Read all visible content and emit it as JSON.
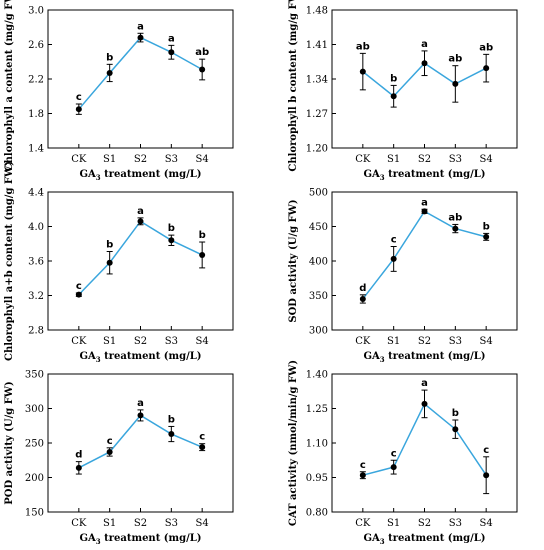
{
  "chart_data": [
    {
      "type": "line",
      "categories": [
        "CK",
        "S1",
        "S2",
        "S3",
        "S4"
      ],
      "values": [
        1.85,
        2.27,
        2.68,
        2.51,
        2.31
      ],
      "errors": [
        0.06,
        0.1,
        0.05,
        0.08,
        0.12
      ],
      "significance": [
        "c",
        "b",
        "a",
        "a",
        "ab"
      ],
      "ylabel": "Chlorophyll a content (mg/g FW)",
      "xlabel": "GA3 treatment (mg/L)",
      "ylim": [
        1.4,
        3.0
      ],
      "yticks": [
        "1.4",
        "1.8",
        "2.2",
        "2.6",
        "3.0"
      ],
      "line_color": "#3aa6dd"
    },
    {
      "type": "line",
      "categories": [
        "CK",
        "S1",
        "S2",
        "S3",
        "S4"
      ],
      "values": [
        1.355,
        1.305,
        1.372,
        1.33,
        1.362
      ],
      "errors": [
        0.037,
        0.022,
        0.025,
        0.037,
        0.028
      ],
      "significance": [
        "ab",
        "b",
        "a",
        "ab",
        "ab"
      ],
      "ylabel": "Chlorophyll b content (mg/g FW)",
      "xlabel": "GA3 treatment (mg/L)",
      "ylim": [
        1.2,
        1.48
      ],
      "yticks": [
        "1.20",
        "1.27",
        "1.34",
        "1.41",
        "1.48"
      ],
      "line_color": "#3aa6dd"
    },
    {
      "type": "line",
      "categories": [
        "CK",
        "S1",
        "S2",
        "S3",
        "S4"
      ],
      "values": [
        3.21,
        3.58,
        4.06,
        3.84,
        3.67
      ],
      "errors": [
        0.02,
        0.13,
        0.04,
        0.06,
        0.15
      ],
      "significance": [
        "c",
        "b",
        "a",
        "b",
        "b"
      ],
      "ylabel": "Chlorophyll a+b content (mg/g FW)",
      "xlabel": "GA3 treatment (mg/L)",
      "ylim": [
        2.8,
        4.4
      ],
      "yticks": [
        "2.8",
        "3.2",
        "3.6",
        "4.0",
        "4.4"
      ],
      "line_color": "#3aa6dd"
    },
    {
      "type": "line",
      "categories": [
        "CK",
        "S1",
        "S2",
        "S3",
        "S4"
      ],
      "values": [
        345,
        403,
        472,
        447,
        435
      ],
      "errors": [
        6,
        18,
        3,
        6,
        5
      ],
      "significance": [
        "d",
        "c",
        "a",
        "ab",
        "b"
      ],
      "ylabel": "SOD activity (U/g FW)",
      "xlabel": "GA3 treatment (mg/L)",
      "ylim": [
        300,
        500
      ],
      "yticks": [
        "300",
        "350",
        "400",
        "450",
        "500"
      ],
      "line_color": "#3aa6dd"
    },
    {
      "type": "line",
      "categories": [
        "CK",
        "S1",
        "S2",
        "S3",
        "S4"
      ],
      "values": [
        214,
        237,
        290,
        263,
        244
      ],
      "errors": [
        9,
        6,
        8,
        11,
        5
      ],
      "significance": [
        "d",
        "c",
        "a",
        "b",
        "c"
      ],
      "ylabel": "POD activity (U/g FW)",
      "xlabel": "GA3 treatment (mg/L)",
      "ylim": [
        150,
        350
      ],
      "yticks": [
        "150",
        "200",
        "250",
        "300",
        "350"
      ],
      "line_color": "#3aa6dd"
    },
    {
      "type": "line",
      "categories": [
        "CK",
        "S1",
        "S2",
        "S3",
        "S4"
      ],
      "values": [
        0.96,
        0.995,
        1.27,
        1.16,
        0.96
      ],
      "errors": [
        0.015,
        0.03,
        0.06,
        0.04,
        0.08
      ],
      "significance": [
        "c",
        "c",
        "a",
        "b",
        "c"
      ],
      "ylabel": "CAT activity (nmol/min/g FW)",
      "xlabel": "GA3 treatment (mg/L)",
      "ylim": [
        0.8,
        1.4
      ],
      "yticks": [
        "0.80",
        "0.95",
        "1.10",
        "1.25",
        "1.40"
      ],
      "line_color": "#3aa6dd"
    }
  ]
}
